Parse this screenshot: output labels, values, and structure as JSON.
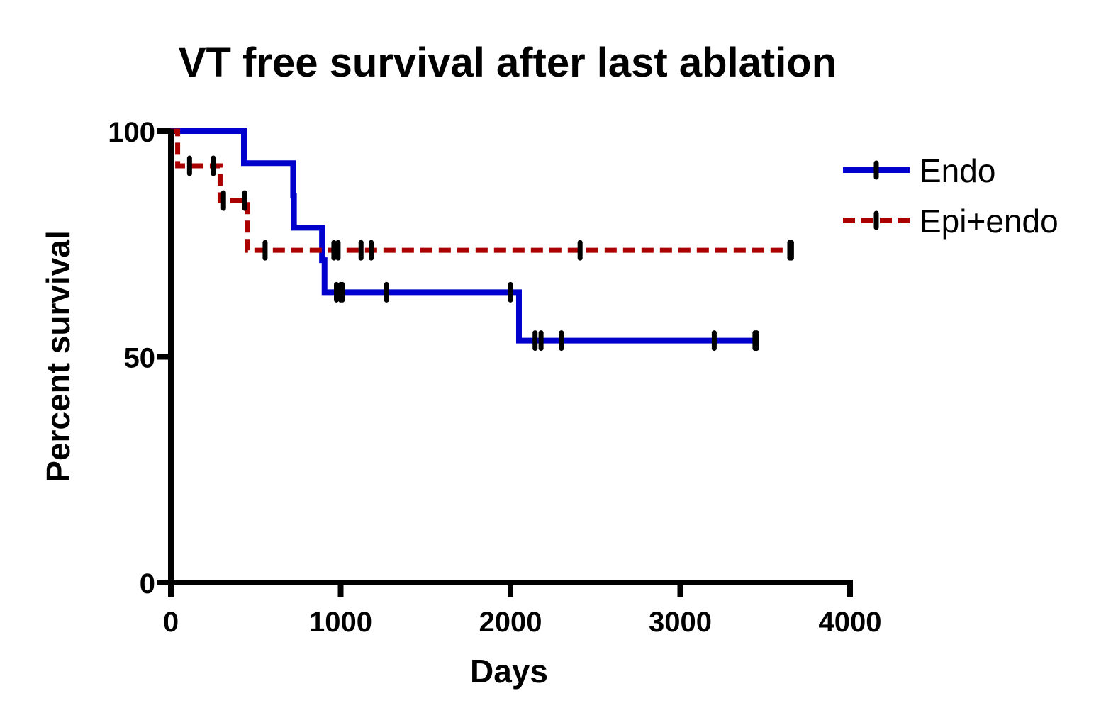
{
  "chart_data": {
    "type": "line",
    "subtype": "kaplan-meier",
    "title": "VT free survival after last ablation",
    "xlabel": "Days",
    "ylabel": "Percent survival",
    "xlim": [
      0,
      4000
    ],
    "ylim": [
      0,
      100
    ],
    "x_ticks": [
      0,
      1000,
      2000,
      3000,
      4000
    ],
    "x_tick_labels": [
      "0",
      "1000",
      "2000",
      "3000",
      "4000"
    ],
    "y_ticks": [
      0,
      50,
      100
    ],
    "y_tick_labels": [
      "0",
      "50",
      "100"
    ],
    "grid": false,
    "legend_position": "top-right",
    "series": [
      {
        "name": "Endo",
        "color": "#0000cc",
        "line_style": "solid",
        "steps": [
          {
            "x": 0,
            "y": 100
          },
          {
            "x": 430,
            "y": 92.9
          },
          {
            "x": 720,
            "y": 85.7
          },
          {
            "x": 725,
            "y": 78.6
          },
          {
            "x": 890,
            "y": 71.4
          },
          {
            "x": 905,
            "y": 64.3
          },
          {
            "x": 2050,
            "y": 53.6
          },
          {
            "x": 3450,
            "y": 53.6
          }
        ],
        "censored": [
          975,
          1000,
          1010,
          1270,
          2000,
          2145,
          2180,
          2300,
          3200,
          3440,
          3450
        ]
      },
      {
        "name": "Epi+endo",
        "color": "#aa0000",
        "line_style": "dashed",
        "steps": [
          {
            "x": 0,
            "y": 100
          },
          {
            "x": 40,
            "y": 92.3
          },
          {
            "x": 290,
            "y": 84.6
          },
          {
            "x": 450,
            "y": 73.6
          },
          {
            "x": 3650,
            "y": 73.6
          }
        ],
        "censored": [
          110,
          250,
          310,
          435,
          555,
          960,
          985,
          1120,
          1180,
          2410,
          3645,
          3655
        ]
      }
    ]
  }
}
